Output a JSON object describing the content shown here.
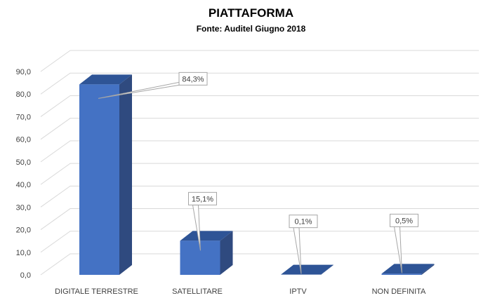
{
  "chart_data": {
    "type": "bar",
    "title": "PIATTAFORMA",
    "subtitle": "Fonte: Auditel Giugno 2018",
    "xlabel": "",
    "ylabel": "",
    "categories": [
      "DIGITALE TERRESTRE",
      "SATELLITARE",
      "IPTV",
      "NON DEFINITA"
    ],
    "values": [
      84.3,
      15.1,
      0.1,
      0.5
    ],
    "data_labels": [
      "84,3%",
      "15,1%",
      "0,1%",
      "0,5%"
    ],
    "ylim": [
      0,
      90
    ],
    "yticks": [
      0,
      10,
      20,
      30,
      40,
      50,
      60,
      70,
      80,
      90
    ],
    "ytick_labels": [
      "0,0",
      "10,0",
      "20,0",
      "30,0",
      "40,0",
      "50,0",
      "60,0",
      "70,0",
      "80,0",
      "90,0"
    ],
    "grid": true,
    "legend": "none",
    "colors": {
      "front": "#4472C4",
      "top": "#2E5496",
      "side": "#2F4A7F",
      "grid": "#d9d9d9",
      "text": "#404040",
      "callout_border": "#a6a6a6"
    }
  }
}
